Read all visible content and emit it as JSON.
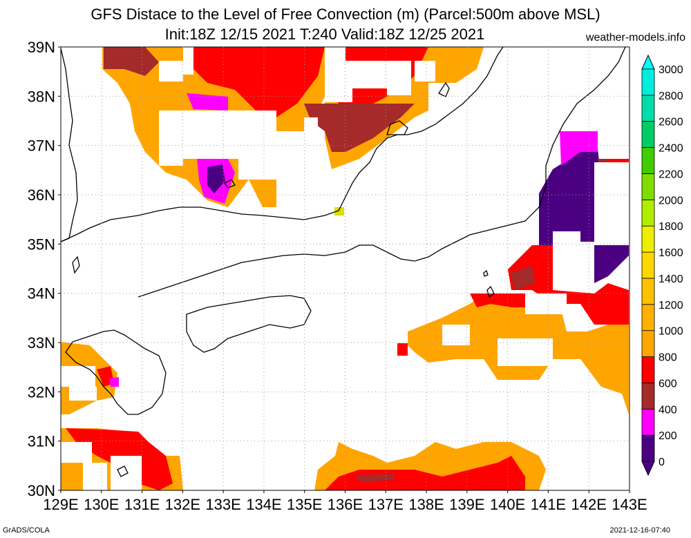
{
  "header": {
    "title_line1": "GFS Distace to the Level of Free Convection (m) (Parcel:500m above MSL)",
    "title_line2": "Init:18Z 12/15 2021 T:240 Valid:18Z 12/25 2021",
    "site": "weather-models.info"
  },
  "footer": {
    "credit": "GrADS/COLA",
    "timestamp": "2021-12-16-07:40"
  },
  "axes": {
    "lon_labels": [
      "129E",
      "130E",
      "131E",
      "132E",
      "133E",
      "134E",
      "135E",
      "136E",
      "137E",
      "138E",
      "139E",
      "140E",
      "141E",
      "142E",
      "143E"
    ],
    "lat_labels": [
      "30N",
      "31N",
      "32N",
      "33N",
      "34N",
      "35N",
      "36N",
      "37N",
      "38N",
      "39N"
    ]
  },
  "colorbar": {
    "labels": [
      "0",
      "200",
      "400",
      "600",
      "800",
      "1000",
      "1200",
      "1400",
      "1600",
      "1800",
      "2000",
      "2200",
      "2400",
      "2600",
      "2800",
      "3000"
    ],
    "colors": [
      "#4b0082",
      "#ff00ff",
      "#a52a2a",
      "#ff0000",
      "#ffa500",
      "#ffb000",
      "#ffc000",
      "#ffd700",
      "#eeee00",
      "#b0ee00",
      "#80dd00",
      "#40cc00",
      "#00cc66",
      "#00ddaa",
      "#00eedd",
      "#00ffff"
    ]
  },
  "field_colors": {
    "purple": "#4b0082",
    "magenta": "#ff00ff",
    "brown": "#a52a2a",
    "red": "#ff0000",
    "orange": "#ffa500",
    "lightorange": "#ffb000",
    "yellowgreen": "#dddd00"
  }
}
